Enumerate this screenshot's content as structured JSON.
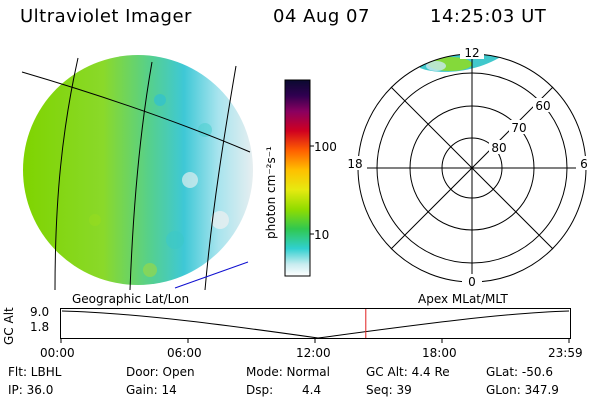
{
  "header": {
    "instrument": "Ultraviolet Imager",
    "date": "04 Aug 07",
    "time": "14:25:03 UT"
  },
  "colorbar": {
    "unit_label": "photon cm⁻²s⁻¹",
    "tick_100": "100",
    "tick_10": "10"
  },
  "polar_plot": {
    "mlt_top": "12",
    "mlt_bottom": "0",
    "mlt_left": "18",
    "mlt_right": "6",
    "lat_60": "60",
    "lat_70": "70",
    "lat_80": "80"
  },
  "labels": {
    "geo": "Geographic Lat/Lon",
    "apex": "Apex MLat/MLT"
  },
  "altitude_panel": {
    "axis_label": "GC Alt",
    "y_max": "9.0",
    "y_min": "1.8",
    "time_ticks": [
      "00:00",
      "06:00",
      "12:00",
      "18:00",
      "23:59"
    ],
    "marker_time_fraction": 0.6
  },
  "info": {
    "filter": "Flt: LBHL",
    "ip": "IP: 36.0",
    "door": "Door: Open",
    "gain": "Gain: 14",
    "mode": "Mode: Normal",
    "dsp_label": "Dsp:",
    "dsp_value": "4.4",
    "gc_alt": "GC Alt: 4.4 Re",
    "seq": "Seq: 39",
    "glat": "GLat: -50.6",
    "glon": "GLon: 347.9"
  },
  "colors": {
    "marker": "#e02020",
    "blue_line": "#1010d0"
  }
}
